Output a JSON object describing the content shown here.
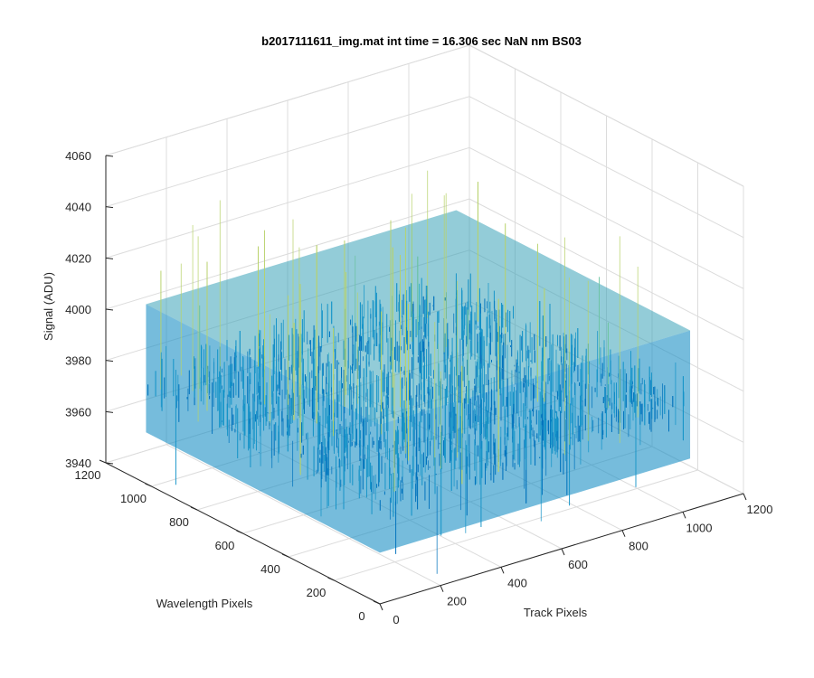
{
  "chart_data": {
    "type": "surface",
    "title": "b2017111611_img.mat int time = 16.306 sec  NaN nm BS03",
    "xlabel": "Track Pixels",
    "ylabel": "Wavelength Pixels",
    "zlabel": "Signal (ADU)",
    "xlim": [
      0,
      1200
    ],
    "ylim": [
      0,
      1200
    ],
    "zlim": [
      3940,
      4060
    ],
    "x_ticks": [
      "0",
      "200",
      "400",
      "600",
      "800",
      "1000",
      "1200"
    ],
    "y_ticks": [
      "0",
      "200",
      "400",
      "600",
      "800",
      "1000",
      "1200"
    ],
    "z_ticks": [
      "3940",
      "3960",
      "3980",
      "4000",
      "4020",
      "4040",
      "4060"
    ],
    "grid": true,
    "surface": {
      "x_range": [
        0,
        1024
      ],
      "y_range": [
        0,
        1024
      ],
      "mean_signal": 3985,
      "typical_min": 3960,
      "typical_max": 4010,
      "spike_min": 3940,
      "spike_max": 4050
    },
    "colormap": [
      "#0072bd",
      "#1593c8",
      "#33b0c4",
      "#6cc3a0",
      "#b8d26a"
    ]
  }
}
